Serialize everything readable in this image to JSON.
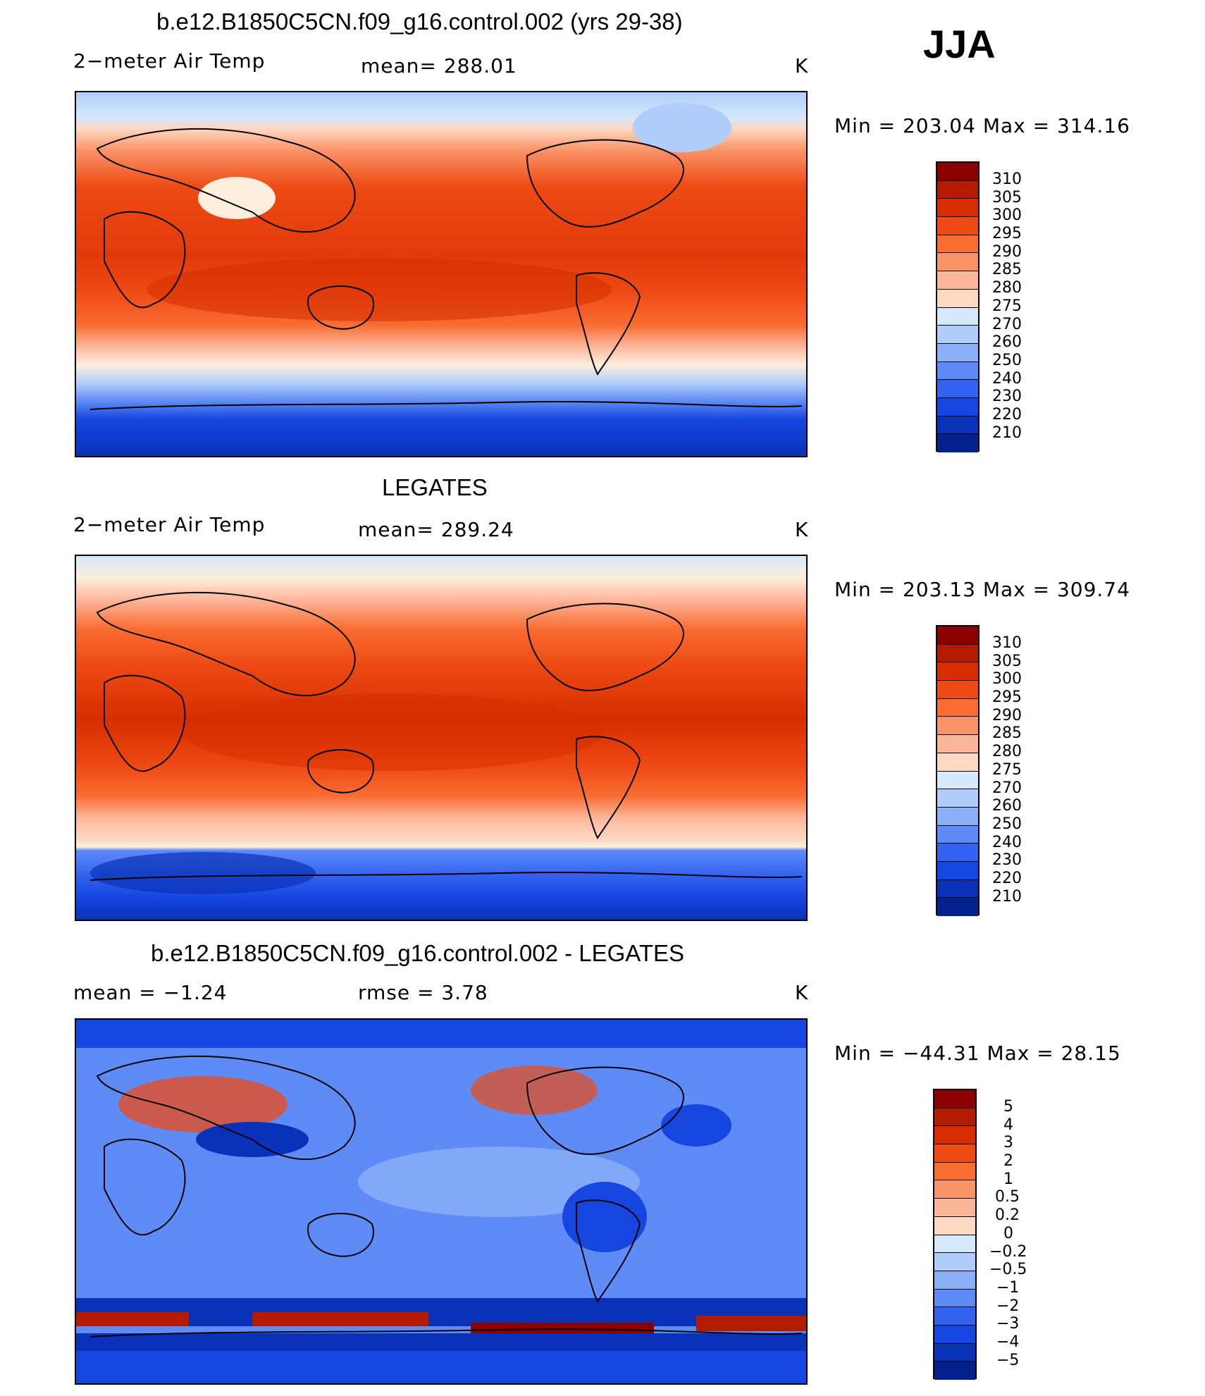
{
  "season": "JJA",
  "panels": [
    {
      "title": "b.e12.B1850C5CN.f09_g16.control.002 (yrs 29-38)",
      "left_label": "2−meter Air Temp",
      "center_label": "mean=  288.01",
      "units": "K",
      "stats": "Min  =  203.04  Max  =  314.16",
      "kind": "temp"
    },
    {
      "title": "LEGATES",
      "left_label": "2−meter Air Temp",
      "center_label": "mean=  289.24",
      "units": "K",
      "stats": "Min  =  203.13  Max  =  309.74",
      "kind": "temp"
    },
    {
      "title": "b.e12.B1850C5CN.f09_g16.control.002 - LEGATES",
      "left_label": "mean  =    −1.24",
      "center_label": "rmse  =     3.78",
      "units": "K",
      "stats": "Min  =  −44.31  Max  =    28.15",
      "kind": "diff"
    }
  ],
  "colorbars": {
    "temp": {
      "labels": [
        "310",
        "305",
        "300",
        "295",
        "290",
        "285",
        "280",
        "275",
        "270",
        "260",
        "250",
        "240",
        "230",
        "220",
        "210"
      ],
      "colors": [
        "#8b0000",
        "#b31b00",
        "#d62e00",
        "#ee4a14",
        "#f96d33",
        "#fb9368",
        "#fcb79b",
        "#fdd8c3",
        "#fdeedd",
        "#d6e8fb",
        "#b0cdfb",
        "#8bb0f8",
        "#5e8bf5",
        "#3262ef",
        "#1546e0",
        "#0a32b8",
        "#04208c"
      ]
    },
    "diff": {
      "labels": [
        "5",
        "4",
        "3",
        "2",
        "1",
        "0.5",
        "0.2",
        "0",
        "−0.2",
        "−0.5",
        "−1",
        "−2",
        "−3",
        "−4",
        "−5"
      ],
      "colors": [
        "#8b0000",
        "#b31b00",
        "#d62e00",
        "#ee4a14",
        "#f96d33",
        "#fb9368",
        "#fcb79b",
        "#fdd8c3",
        "#fdeedd",
        "#d6e8fb",
        "#b0cdfb",
        "#8bb0f8",
        "#5e8bf5",
        "#3262ef",
        "#1546e0",
        "#0a32b8",
        "#04208c"
      ]
    }
  }
}
